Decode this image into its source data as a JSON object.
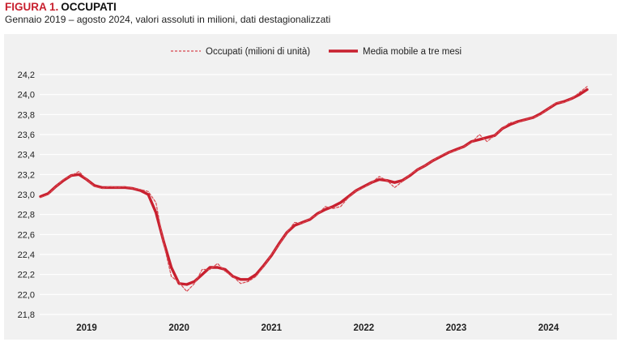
{
  "header": {
    "figure_label": "FIGURA 1.",
    "figure_name": "OCCUPATI",
    "subtitle": "Gennaio 2019 – agosto 2024, valori assoluti in milioni, dati destagionalizzati"
  },
  "colors": {
    "accent": "#c8202f",
    "series_main": "#c8202f",
    "series_dashed": "#d8474f",
    "background": "#f1f1f1",
    "grid": "#ffffff"
  },
  "chart_data": {
    "type": "line",
    "title": "OCCUPATI",
    "xlabel": "",
    "ylabel": "",
    "ylim": [
      21.8,
      24.2
    ],
    "yticks": [
      21.8,
      22.0,
      22.2,
      22.4,
      22.6,
      22.8,
      23.0,
      23.2,
      23.4,
      23.6,
      23.8,
      24.0,
      24.2
    ],
    "ytick_labels": [
      "21,8",
      "22,0",
      "22,2",
      "22,4",
      "22,6",
      "22,8",
      "23,0",
      "23,2",
      "23,4",
      "23,6",
      "23,8",
      "24,0",
      "24,2"
    ],
    "xtick_labels": [
      "2019",
      "2020",
      "2021",
      "2022",
      "2023",
      "2024"
    ],
    "grid": true,
    "legend_position": "top-center",
    "series": [
      {
        "name": "Occupati (milioni di unità)",
        "style": "dashed",
        "values": [
          22.97,
          23.0,
          23.08,
          23.15,
          23.19,
          23.23,
          23.15,
          23.08,
          23.06,
          23.08,
          23.07,
          23.08,
          23.06,
          23.05,
          23.03,
          22.92,
          22.51,
          22.18,
          22.12,
          22.03,
          22.11,
          22.25,
          22.25,
          22.31,
          22.23,
          22.18,
          22.11,
          22.13,
          22.18,
          22.28,
          22.4,
          22.5,
          22.62,
          22.72,
          22.71,
          22.76,
          22.8,
          22.88,
          22.86,
          22.88,
          22.97,
          23.04,
          23.07,
          23.12,
          23.18,
          23.14,
          23.07,
          23.13,
          23.2,
          23.25,
          23.29,
          23.34,
          23.39,
          23.42,
          23.44,
          23.48,
          23.52,
          23.6,
          23.53,
          23.59,
          23.66,
          23.72,
          23.72,
          23.75,
          23.77,
          23.8,
          23.86,
          23.92,
          23.92,
          23.96,
          24.02,
          24.08
        ]
      },
      {
        "name": "Media mobile a tre mesi",
        "style": "solid",
        "values": [
          22.98,
          23.01,
          23.08,
          23.14,
          23.19,
          23.2,
          23.15,
          23.09,
          23.07,
          23.07,
          23.07,
          23.07,
          23.06,
          23.04,
          23.0,
          22.82,
          22.53,
          22.27,
          22.11,
          22.1,
          22.13,
          22.2,
          22.27,
          22.27,
          22.25,
          22.18,
          22.15,
          22.15,
          22.2,
          22.29,
          22.39,
          22.51,
          22.62,
          22.69,
          22.72,
          22.75,
          22.81,
          22.85,
          22.88,
          22.92,
          22.98,
          23.04,
          23.08,
          23.12,
          23.15,
          23.14,
          23.12,
          23.14,
          23.19,
          23.25,
          23.29,
          23.34,
          23.38,
          23.42,
          23.45,
          23.48,
          23.53,
          23.55,
          23.57,
          23.59,
          23.66,
          23.7,
          23.73,
          23.75,
          23.77,
          23.81,
          23.86,
          23.91,
          23.93,
          23.96,
          24.0,
          24.05
        ]
      }
    ]
  }
}
